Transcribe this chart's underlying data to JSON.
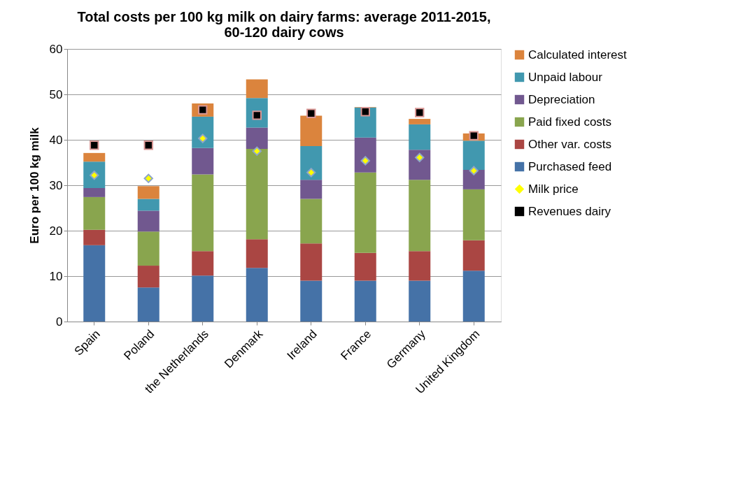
{
  "chart_data": {
    "type": "bar",
    "stacked": true,
    "title": "Total costs per 100 kg milk on dairy farms: average 2011-2015, 60-120 dairy cows",
    "ylabel": "Euro per 100 kg milk",
    "categories": [
      "Spain",
      "Poland",
      "the Netherlands",
      "Denmark",
      "Ireland",
      "France",
      "Germany",
      "United Kingdom"
    ],
    "ylim": [
      0,
      60
    ],
    "yticks": [
      0,
      10,
      20,
      30,
      40,
      50,
      60
    ],
    "grid": "y",
    "legend": "right",
    "series": [
      {
        "name": "Purchased feed",
        "color": "#4572a7",
        "values": [
          16.8,
          7.5,
          10.1,
          11.8,
          9.0,
          9.0,
          9.0,
          11.2
        ]
      },
      {
        "name": "Other var. costs",
        "color": "#aa4643",
        "values": [
          3.4,
          4.8,
          5.4,
          6.3,
          8.2,
          6.1,
          6.5,
          6.7
        ]
      },
      {
        "name": "Paid fixed costs",
        "color": "#89a54e",
        "values": [
          7.2,
          7.5,
          16.9,
          19.9,
          9.8,
          17.7,
          15.7,
          11.2
        ]
      },
      {
        "name": "Depreciation",
        "color": "#71588f",
        "values": [
          2.0,
          4.6,
          5.8,
          4.7,
          4.2,
          7.7,
          6.6,
          4.3
        ]
      },
      {
        "name": "Unpaid labour",
        "color": "#4198af",
        "values": [
          5.8,
          2.6,
          6.9,
          6.5,
          7.4,
          6.6,
          5.6,
          6.4
        ]
      },
      {
        "name": "Calculated interest",
        "color": "#db843d",
        "values": [
          1.9,
          2.8,
          2.9,
          4.1,
          6.7,
          0.1,
          1.2,
          1.6
        ]
      },
      {
        "name": "Milk price",
        "type": "scatter",
        "marker": "diamond",
        "color": "#ffff00",
        "values": [
          32.2,
          31.5,
          40.3,
          37.5,
          32.8,
          35.4,
          36.1,
          33.2
        ]
      },
      {
        "name": "Revenues dairy",
        "type": "scatter",
        "marker": "square",
        "color": "#000000",
        "values": [
          38.8,
          38.8,
          46.6,
          45.4,
          45.8,
          46.2,
          46.0,
          40.9
        ]
      }
    ]
  }
}
